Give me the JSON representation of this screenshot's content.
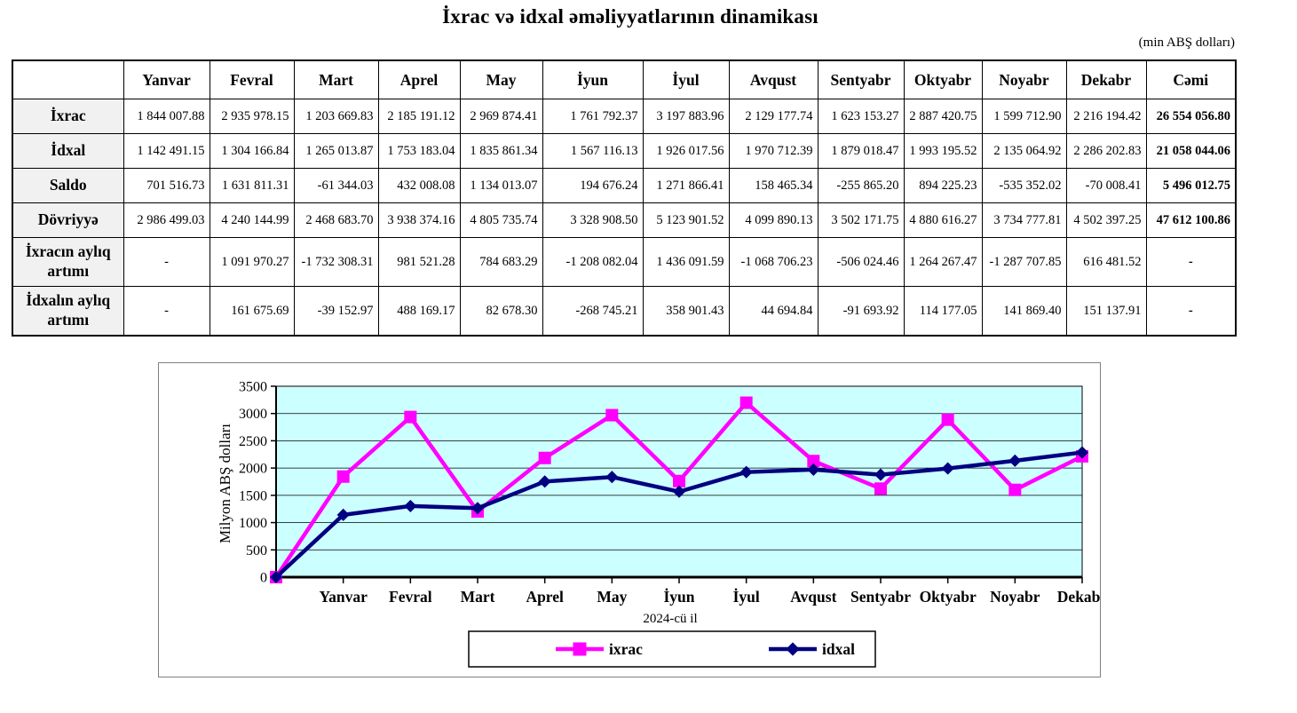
{
  "page": {
    "title": "İxrac və idxal əməliyyatlarının dinamikası",
    "unit_note": "(min ABŞ dolları)"
  },
  "table": {
    "columns": [
      "",
      "Yanvar",
      "Fevral",
      "Mart",
      "Aprel",
      "May",
      "İyun",
      "İyul",
      "Avqust",
      "Sentyabr",
      "Oktyabr",
      "Noyabr",
      "Dekabr",
      "Cəmi"
    ],
    "rows": [
      {
        "label": "İxrac",
        "values": [
          "1 844 007.88",
          "2 935 978.15",
          "1 203 669.83",
          "2 185 191.12",
          "2 969 874.41",
          "1 761 792.37",
          "3 197 883.96",
          "2 129 177.74",
          "1 623 153.27",
          "2 887 420.75",
          "1 599 712.90",
          "2 216 194.42"
        ],
        "total": "26 554 056.80"
      },
      {
        "label": "İdxal",
        "values": [
          "1 142 491.15",
          "1 304 166.84",
          "1 265 013.87",
          "1 753 183.04",
          "1 835 861.34",
          "1 567 116.13",
          "1 926 017.56",
          "1 970 712.39",
          "1 879 018.47",
          "1 993 195.52",
          "2 135 064.92",
          "2 286 202.83"
        ],
        "total": "21 058 044.06"
      },
      {
        "label": "Saldo",
        "values": [
          "701 516.73",
          "1 631 811.31",
          "-61 344.03",
          "432 008.08",
          "1 134 013.07",
          "194 676.24",
          "1 271 866.41",
          "158 465.34",
          "-255 865.20",
          "894 225.23",
          "-535 352.02",
          "-70 008.41"
        ],
        "total": "5 496 012.75"
      },
      {
        "label": "Dövriyyə",
        "values": [
          "2 986 499.03",
          "4 240 144.99",
          "2 468 683.70",
          "3 938 374.16",
          "4 805 735.74",
          "3 328 908.50",
          "5 123 901.52",
          "4 099 890.13",
          "3 502 171.75",
          "4 880 616.27",
          "3 734 777.81",
          "4 502 397.25"
        ],
        "total": "47 612 100.86"
      },
      {
        "label": "İxracın aylıq artımı",
        "values": [
          "-",
          "1 091 970.27",
          "-1 732 308.31",
          "981 521.28",
          "784 683.29",
          "-1 208 082.04",
          "1 436 091.59",
          "-1 068 706.23",
          "-506 024.46",
          "1 264 267.47",
          "-1 287 707.85",
          "616 481.52"
        ],
        "total": "-"
      },
      {
        "label": "İdxalın aylıq artımı",
        "values": [
          "-",
          "161 675.69",
          "-39 152.97",
          "488 169.17",
          "82 678.30",
          "-268 745.21",
          "358 901.43",
          "44 694.84",
          "-91 693.92",
          "114 177.05",
          "141 869.40",
          "151 137.91"
        ],
        "total": "-"
      }
    ]
  },
  "chart_data": {
    "type": "line",
    "title": "",
    "xlabel": "2024-cü il",
    "ylabel": "Milyon ABŞ dolları",
    "ylim": [
      0,
      3500
    ],
    "ytick_step": 500,
    "grid": "horizontal",
    "legend_position": "bottom",
    "plot_bg": "#CCFFFF",
    "x_labels": [
      "",
      "Yanvar",
      "Fevral",
      "Mart",
      "Aprel",
      "May",
      "İyun",
      "İyul",
      "Avqust",
      "Sentyabr",
      "Oktyabr",
      "Noyabr",
      "Dekabr"
    ],
    "series": [
      {
        "name": "ixrac",
        "color": "#FF00FF",
        "marker": "square",
        "values": [
          0,
          1844,
          2936,
          1204,
          2185,
          2970,
          1762,
          3198,
          2129,
          1623,
          2887,
          1600,
          2216
        ]
      },
      {
        "name": "idxal",
        "color": "#000080",
        "marker": "diamond",
        "values": [
          0,
          1142,
          1304,
          1265,
          1753,
          1836,
          1567,
          1926,
          1971,
          1879,
          1993,
          2135,
          2286
        ]
      }
    ]
  }
}
